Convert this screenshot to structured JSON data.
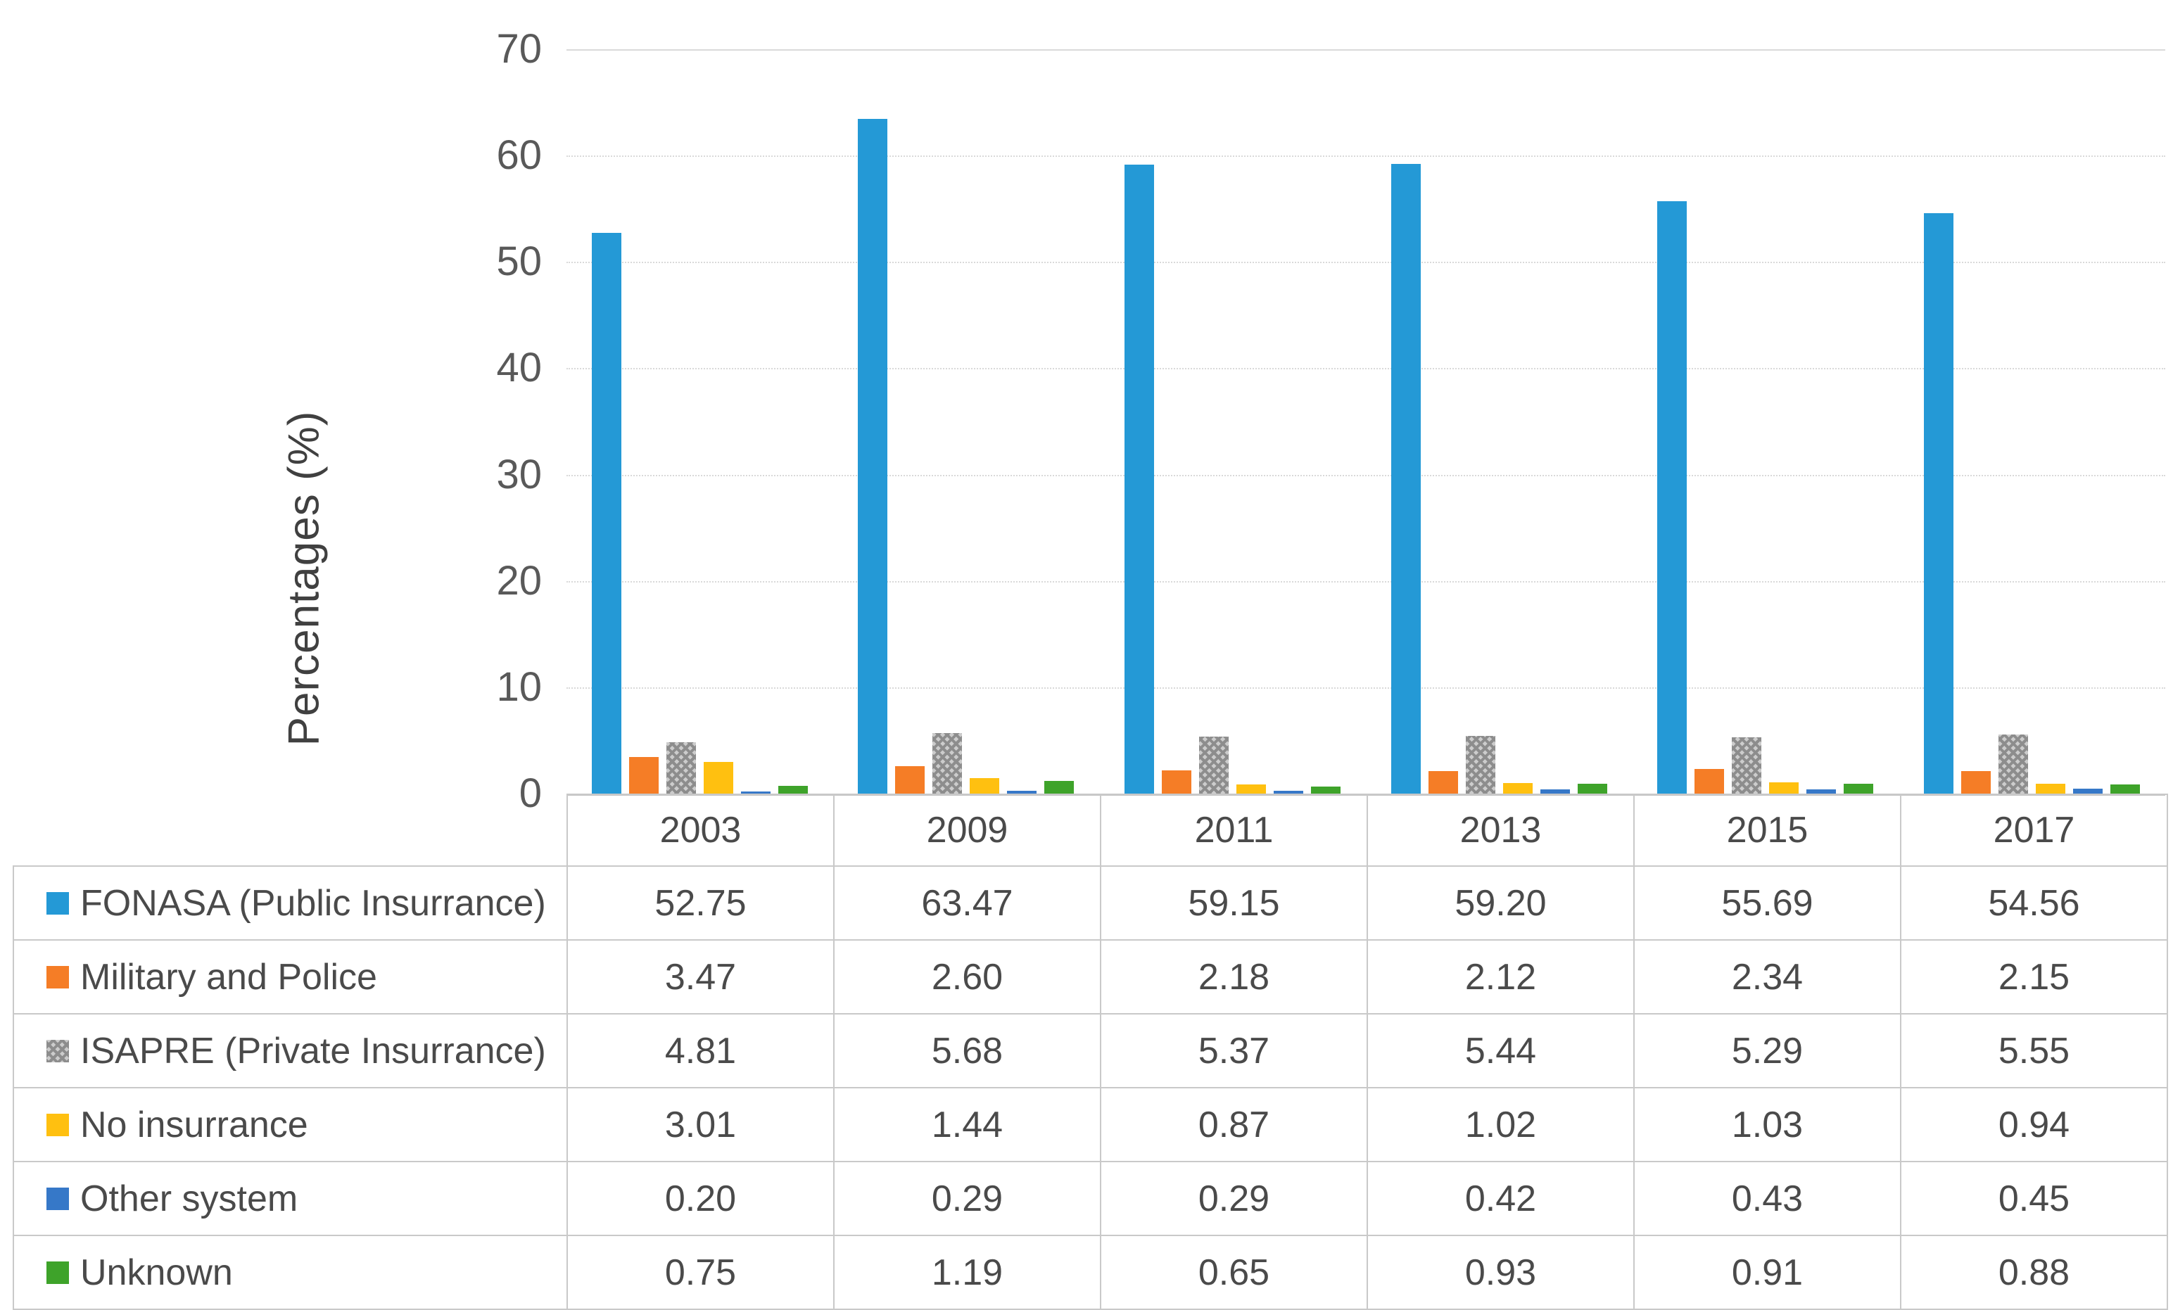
{
  "chart_data": {
    "type": "bar",
    "title": "",
    "xlabel": "",
    "ylabel": "Percentages (%)",
    "ylim": [
      0,
      70
    ],
    "ytick_step": 10,
    "yticks": [
      "0",
      "10",
      "20",
      "30",
      "40",
      "50",
      "60",
      "70"
    ],
    "grid": true,
    "legend_position": "table-left",
    "categories": [
      "2003",
      "2009",
      "2011",
      "2013",
      "2015",
      "2017"
    ],
    "series": [
      {
        "name": "FONASA (Public Insurrance)",
        "color": "#2499D6",
        "pattern": false,
        "values": [
          "52.75",
          "63.47",
          "59.15",
          "59.20",
          "55.69",
          "54.56"
        ]
      },
      {
        "name": "Military and Police",
        "color": "#F57D26",
        "pattern": false,
        "values": [
          "3.47",
          "2.60",
          "2.18",
          "2.12",
          "2.34",
          "2.15"
        ]
      },
      {
        "name": "ISAPRE (Private Insurrance)",
        "color": "#A8A8A8",
        "pattern": true,
        "values": [
          "4.81",
          "5.68",
          "5.37",
          "5.44",
          "5.29",
          "5.55"
        ]
      },
      {
        "name": "No insurrance",
        "color": "#FFC010",
        "pattern": false,
        "values": [
          "3.01",
          "1.44",
          "0.87",
          "1.02",
          "1.03",
          "0.94"
        ]
      },
      {
        "name": "Other system",
        "color": "#3678C8",
        "pattern": false,
        "values": [
          "0.20",
          "0.29",
          "0.29",
          "0.42",
          "0.43",
          "0.45"
        ]
      },
      {
        "name": "Unknown",
        "color": "#3EA32A",
        "pattern": false,
        "values": [
          "0.75",
          "1.19",
          "0.65",
          "0.93",
          "0.91",
          "0.88"
        ]
      }
    ]
  }
}
